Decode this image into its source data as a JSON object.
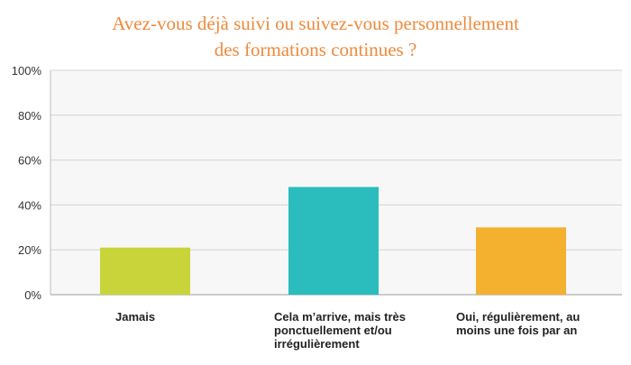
{
  "chart_data": {
    "type": "bar",
    "title_line1": "Avez-vous déjà suivi ou suivez-vous personnellement",
    "title_line2": "des formations continues ?",
    "categories": [
      "Jamais",
      "Cela m’arrive, mais très ponctuellement et/ou irrégulièrement",
      "Oui, régulièrement, au moins une fois par an"
    ],
    "values": [
      21,
      48,
      30
    ],
    "colors": [
      "#c8d43a",
      "#2bbdbd",
      "#f3b12f"
    ],
    "y_ticks": [
      "0%",
      "20%",
      "40%",
      "60%",
      "80%",
      "100%"
    ],
    "ylim": [
      0,
      100
    ],
    "grid": true,
    "legend": "none"
  }
}
